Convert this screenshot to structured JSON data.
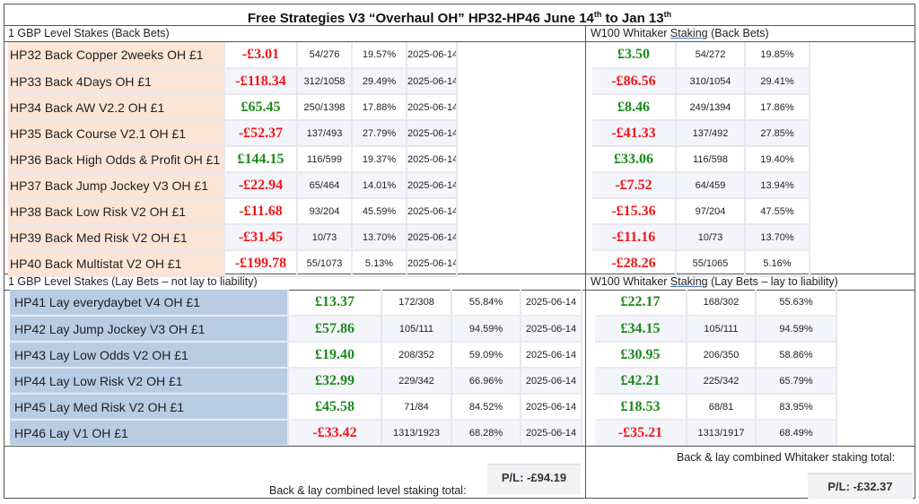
{
  "title": {
    "main": "Free Strategies V3 “Overhaul OH” HP32-HP46 June 14",
    "sup1": "th",
    "mid": " to Jan 13",
    "sup2": "th"
  },
  "back_level": {
    "header": "1 GBP Level Stakes (Back Bets)",
    "rows": [
      {
        "name": "HP32 Back Copper 2weeks OH £1",
        "pl": "-£3.01",
        "sign": "neg",
        "count": "54/276",
        "pct": "19.57%",
        "date": "2025-06-14"
      },
      {
        "name": "HP33 Back 4Days OH £1",
        "pl": "-£118.34",
        "sign": "neg",
        "count": "312/1058",
        "pct": "29.49%",
        "date": "2025-06-14"
      },
      {
        "name": "HP34 Back AW V2.2 OH £1",
        "pl": "£65.45",
        "sign": "pos",
        "count": "250/1398",
        "pct": "17.88%",
        "date": "2025-06-14"
      },
      {
        "name": "HP35 Back Course V2.1 OH £1",
        "pl": "-£52.37",
        "sign": "neg",
        "count": "137/493",
        "pct": "27.79%",
        "date": "2025-06-14"
      },
      {
        "name": "HP36 Back High Odds & Profit OH £1",
        "pl": "£144.15",
        "sign": "pos",
        "count": "116/599",
        "pct": "19.37%",
        "date": "2025-06-14"
      },
      {
        "name": "HP37 Back Jump Jockey V3 OH £1",
        "pl": "-£22.94",
        "sign": "neg",
        "count": "65/464",
        "pct": "14.01%",
        "date": "2025-06-14"
      },
      {
        "name": "HP38 Back Low Risk V2 OH £1",
        "pl": "-£11.68",
        "sign": "neg",
        "count": "93/204",
        "pct": "45.59%",
        "date": "2025-06-14"
      },
      {
        "name": "HP39 Back Med Risk V2 OH £1",
        "pl": "-£31.45",
        "sign": "neg",
        "count": "10/73",
        "pct": "13.70%",
        "date": "2025-06-14"
      },
      {
        "name": "HP40 Back Multistat V2 OH £1",
        "pl": "-£199.78",
        "sign": "neg",
        "count": "55/1073",
        "pct": "5.13%",
        "date": "2025-06-14"
      }
    ]
  },
  "back_whitaker": {
    "header_a": "W100 Whitaker ",
    "header_b": "Staking",
    "header_c": "  (Back Bets)",
    "rows": [
      {
        "pl": "£3.50",
        "sign": "pos",
        "count": "54/272",
        "pct": "19.85%"
      },
      {
        "pl": "-£86.56",
        "sign": "neg",
        "count": "310/1054",
        "pct": "29.41%"
      },
      {
        "pl": "£8.46",
        "sign": "pos",
        "count": "249/1394",
        "pct": "17.86%"
      },
      {
        "pl": "-£41.33",
        "sign": "neg",
        "count": "137/492",
        "pct": "27.85%"
      },
      {
        "pl": "£33.06",
        "sign": "pos",
        "count": "116/598",
        "pct": "19.40%"
      },
      {
        "pl": "-£7.52",
        "sign": "neg",
        "count": "64/459",
        "pct": "13.94%"
      },
      {
        "pl": "-£15.36",
        "sign": "neg",
        "count": "97/204",
        "pct": "47.55%"
      },
      {
        "pl": "-£11.16",
        "sign": "neg",
        "count": "10/73",
        "pct": "13.70%"
      },
      {
        "pl": "-£28.26",
        "sign": "neg",
        "count": "55/1065",
        "pct": "5.16%"
      }
    ]
  },
  "lay_level": {
    "header": "1 GBP Level Stakes (Lay Bets – not lay to liability)",
    "rows": [
      {
        "name": "HP41 Lay everydaybet V4 OH £1",
        "pl": "£13.37",
        "sign": "pos",
        "count": "172/308",
        "pct": "55.84%",
        "date": "2025-06-14"
      },
      {
        "name": "HP42 Lay Jump Jockey V3 OH £1",
        "pl": "£57.86",
        "sign": "pos",
        "count": "105/111",
        "pct": "94.59%",
        "date": "2025-06-14"
      },
      {
        "name": "HP43 Lay Low Odds V2 OH £1",
        "pl": "£19.40",
        "sign": "pos",
        "count": "208/352",
        "pct": "59.09%",
        "date": "2025-06-14"
      },
      {
        "name": "HP44 Lay Low Risk V2 OH £1",
        "pl": "£32.99",
        "sign": "pos",
        "count": "229/342",
        "pct": "66.96%",
        "date": "2025-06-14"
      },
      {
        "name": "HP45 Lay Med Risk V2 OH £1",
        "pl": "£45.58",
        "sign": "pos",
        "count": "71/84",
        "pct": "84.52%",
        "date": "2025-06-14"
      },
      {
        "name": "HP46 Lay V1 OH £1",
        "pl": "-£33.42",
        "sign": "neg",
        "count": "1313/1923",
        "pct": "68.28%",
        "date": "2025-06-14"
      }
    ]
  },
  "lay_whitaker": {
    "header_a": "W100 Whitaker ",
    "header_b": "Staking",
    "header_c": "  (Lay Bets – lay to liability)",
    "rows": [
      {
        "pl": "£22.17",
        "sign": "pos",
        "count": "168/302",
        "pct": "55.63%"
      },
      {
        "pl": "£34.15",
        "sign": "pos",
        "count": "105/111",
        "pct": "94.59%"
      },
      {
        "pl": "£30.95",
        "sign": "pos",
        "count": "206/350",
        "pct": "58.86%"
      },
      {
        "pl": "£42.21",
        "sign": "pos",
        "count": "225/342",
        "pct": "65.79%"
      },
      {
        "pl": "£18.53",
        "sign": "pos",
        "count": "68/81",
        "pct": "83.95%"
      },
      {
        "pl": "-£35.21",
        "sign": "neg",
        "count": "1313/1917",
        "pct": "68.49%"
      }
    ]
  },
  "totals": {
    "level_label": "Back & lay combined level staking total:",
    "level_value": "P/L: -£94.19",
    "whitaker_label": "Back & lay combined Whitaker staking total:",
    "whitaker_value": "P/L: -£32.37"
  }
}
